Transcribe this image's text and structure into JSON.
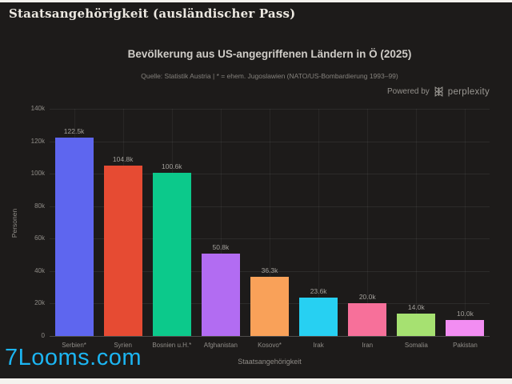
{
  "window": {
    "header_title": "Staatsangehörigkeit (ausländischer Pass)"
  },
  "chart": {
    "powered_by_label": "Powered by",
    "brand": "perplexity"
  },
  "chart_data": {
    "type": "bar",
    "title": "Bevölkerung aus US-angegriffenen Ländern in Ö (2025)",
    "subtitle": "Quelle: Statistik Austria | * = ehem. Jugoslawien (NATO/US-Bombardierung 1993–99)",
    "categories": [
      "Serbien*",
      "Syrien",
      "Bosnien u.H.*",
      "Afghanistan",
      "Kosovo*",
      "Irak",
      "Iran",
      "Somalia",
      "Pakistan"
    ],
    "values": [
      122500,
      104800,
      100600,
      50800,
      36300,
      23600,
      20000,
      14000,
      10000
    ],
    "value_labels": [
      "122.5k",
      "104.8k",
      "100.6k",
      "50.8k",
      "36.3k",
      "23.6k",
      "20.0k",
      "14.0k",
      "10.0k"
    ],
    "bar_colors": [
      "#5e66ef",
      "#e64b33",
      "#0cc98b",
      "#b26cf2",
      "#f9a159",
      "#27d0f2",
      "#f7709a",
      "#a6e171",
      "#f28df2"
    ],
    "xlabel": "Staatsangehörigkeit",
    "ylabel": "Personen",
    "ylim": [
      0,
      140000
    ],
    "ytick_step": 20000,
    "ytick_labels": [
      "0",
      "20k",
      "40k",
      "60k",
      "80k",
      "100k",
      "120k",
      "140k"
    ],
    "grid": true,
    "legend": false,
    "background": "#1d1b1a"
  },
  "watermark": {
    "text": "7Looms.com",
    "color": "#1cb5f2"
  }
}
